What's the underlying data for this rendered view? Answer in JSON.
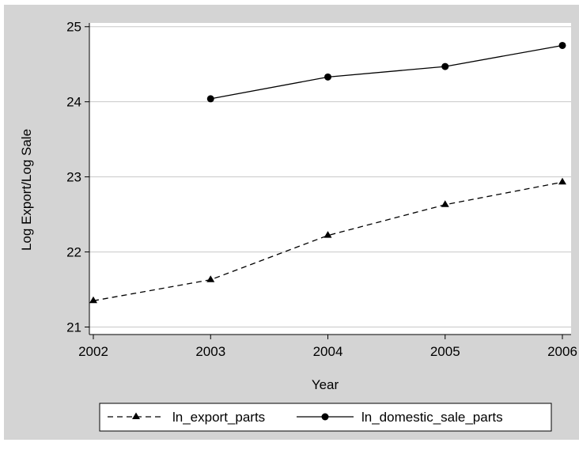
{
  "chart_data": {
    "type": "line",
    "xlabel": "Year",
    "ylabel": "Log Export/Log Sale",
    "x_ticks": [
      2002,
      2003,
      2004,
      2005,
      2006
    ],
    "y_ticks": [
      21,
      22,
      23,
      24,
      25
    ],
    "xlim": [
      2002,
      2006
    ],
    "ylim": [
      20.9,
      25.05
    ],
    "grid": true,
    "legend_position": "bottom",
    "series": [
      {
        "name": "ln_export_parts",
        "line_style": "dashed",
        "marker": "triangle",
        "color": "#000000",
        "points": [
          {
            "x": 2002,
            "y": 21.35
          },
          {
            "x": 2003,
            "y": 21.63
          },
          {
            "x": 2004,
            "y": 22.22
          },
          {
            "x": 2005,
            "y": 22.63
          },
          {
            "x": 2006,
            "y": 22.93
          }
        ]
      },
      {
        "name": "ln_domestic_sale_parts",
        "line_style": "solid",
        "marker": "circle",
        "color": "#000000",
        "points": [
          {
            "x": 2003,
            "y": 24.04
          },
          {
            "x": 2004,
            "y": 24.33
          },
          {
            "x": 2005,
            "y": 24.47
          },
          {
            "x": 2006,
            "y": 24.75
          }
        ]
      }
    ]
  },
  "colors": {
    "outer_background": "#d4d4d4",
    "plot_background": "#ffffff",
    "gridline": "#c8c8c8",
    "axis": "#000000"
  }
}
